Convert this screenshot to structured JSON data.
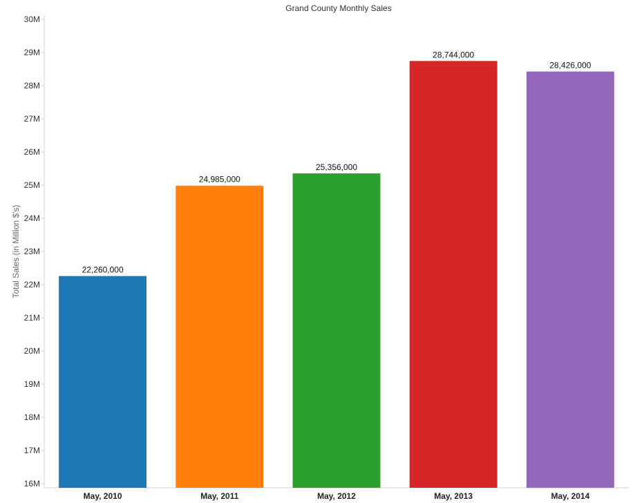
{
  "chart_data": {
    "type": "bar",
    "title": "Grand County Monthly Sales",
    "xlabel": "",
    "ylabel": "Total Sales (in Million $'s)",
    "categories": [
      "May, 2010",
      "May, 2011",
      "May, 2012",
      "May, 2013",
      "May, 2014"
    ],
    "values": [
      22260000,
      24985000,
      25356000,
      28744000,
      28426000
    ],
    "value_labels": [
      "22,260,000",
      "24,985,000",
      "25,356,000",
      "28,744,000",
      "28,426,000"
    ],
    "colors": [
      "#1f77b4",
      "#ff7f0e",
      "#2ca02c",
      "#d62728",
      "#9467bd"
    ],
    "ylim": [
      16000000,
      30000000
    ],
    "yticks": [
      16000000,
      17000000,
      18000000,
      19000000,
      20000000,
      21000000,
      22000000,
      23000000,
      24000000,
      25000000,
      26000000,
      27000000,
      28000000,
      29000000,
      30000000
    ],
    "ytick_labels": [
      "16M",
      "17M",
      "18M",
      "19M",
      "20M",
      "21M",
      "22M",
      "23M",
      "24M",
      "25M",
      "26M",
      "27M",
      "28M",
      "29M",
      "30M"
    ],
    "grid": false,
    "legend": "none"
  }
}
